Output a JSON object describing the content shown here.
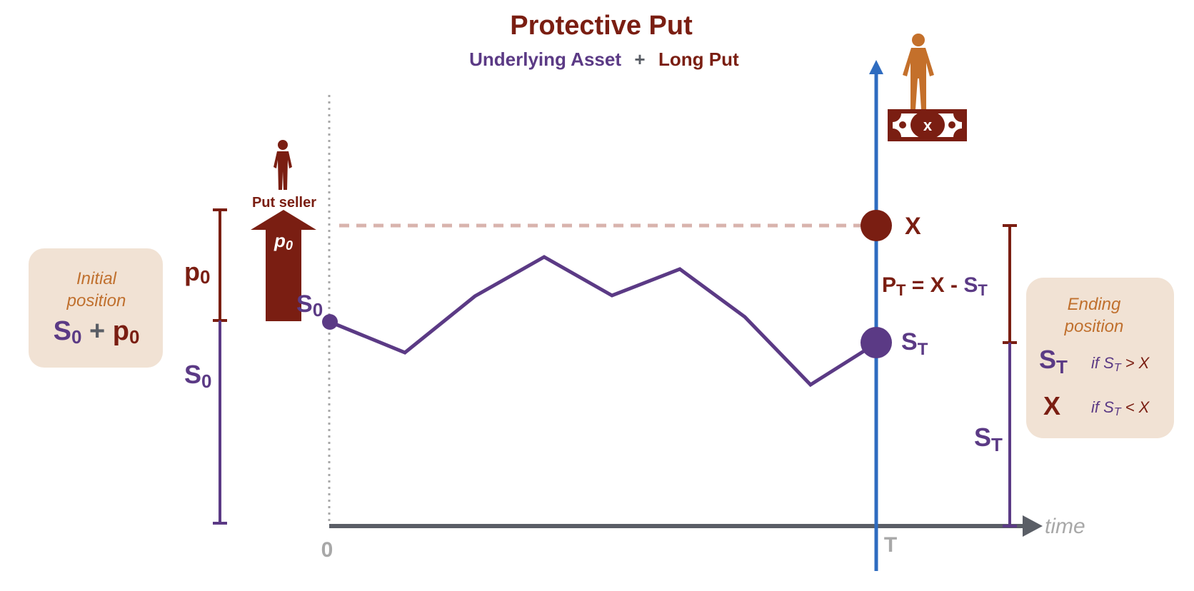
{
  "title": "Protective Put",
  "subtitle": {
    "part1": "Underlying Asset",
    "plus": "+",
    "part2": "Long Put"
  },
  "initial_panel": {
    "line1": "Initial",
    "line2": "position",
    "formula": {
      "s": "S",
      "s_sub": "0",
      "plus": " + ",
      "p": "p",
      "p_sub": "0"
    }
  },
  "ending_panel": {
    "line1": "Ending",
    "line2": "position",
    "row1": {
      "value": "S",
      "value_sub": "T",
      "cond_prefix": "if ",
      "cond_s": "S",
      "cond_sub": "T",
      "cond_rest": " > X"
    },
    "row2": {
      "value": "X",
      "cond_prefix": "if ",
      "cond_s": "S",
      "cond_sub": "T",
      "cond_rest": " < X"
    }
  },
  "labels": {
    "p0": {
      "main": "p",
      "sub": "0"
    },
    "s0_left": {
      "main": "S",
      "sub": "0"
    },
    "s0_point": {
      "main": "S",
      "sub": "0"
    },
    "st_point": {
      "main": "S",
      "sub": "T"
    },
    "st_right": {
      "main": "S",
      "sub": "T"
    },
    "x_point": "X",
    "pt_formula": {
      "p": "P",
      "p_sub": "T",
      "eq": " = X - ",
      "s": "S",
      "s_sub": "T"
    },
    "put_seller": "Put seller",
    "arrow_p0": {
      "main": "p",
      "sub": "0"
    },
    "banknote_x": "x",
    "axis_zero": "0",
    "axis_T": "T",
    "axis_time": "time"
  },
  "colors": {
    "purple": "#5b3a85",
    "maroon": "#7a1e12",
    "blue_axis": "#2f6cc0",
    "person_orange": "#c4702b",
    "panel_bg": "#f1e2d4",
    "panel_text": "#c0702e",
    "dashed": "#d8b3ad",
    "axis_grey": "#5a5e66"
  },
  "icons": [
    "person-icon",
    "banknote-icon",
    "up-arrow-icon"
  ]
}
